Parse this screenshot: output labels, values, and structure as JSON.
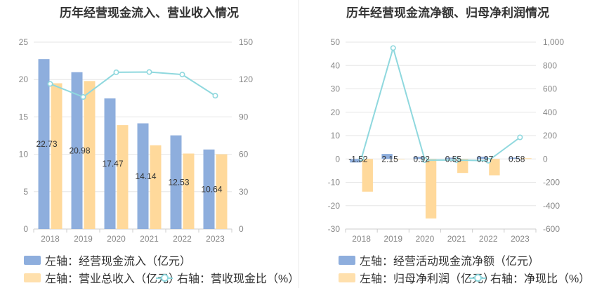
{
  "left": {
    "title": "历年经营现金流入、营业收入情况",
    "legend": {
      "bar1": "左轴：经营现金流入（亿元）",
      "bar2": "左轴：营业总收入（亿元）",
      "line": "右轴：营收现金比（%）"
    }
  },
  "right": {
    "title": "历年经营现金流净额、归母净利润情况",
    "legend": {
      "bar1": "左轴：经营活动现金流净额（亿元）",
      "bar2": "左轴：归母净利润（亿元）",
      "line": "右轴：净现比（%）"
    }
  },
  "colors": {
    "bar1": "#8eaedd",
    "bar2": "#ffd99b",
    "line": "#8fd8de",
    "grid": "#e6e6e6",
    "axis_text": "#888888"
  },
  "chart_data": [
    {
      "type": "bar",
      "title": "历年经营现金流入、营业收入情况",
      "categories": [
        "2018",
        "2019",
        "2020",
        "2021",
        "2022",
        "2023"
      ],
      "left_axis": {
        "ylim": [
          0,
          25
        ],
        "ticks": [
          "0",
          "5",
          "10",
          "15",
          "20",
          "25"
        ]
      },
      "right_axis": {
        "ylim": [
          0,
          150
        ],
        "ticks": [
          "0",
          "30",
          "60",
          "90",
          "120",
          "150"
        ]
      },
      "series": [
        {
          "name": "左轴：经营现金流入（亿元）",
          "axis": "left",
          "type": "bar",
          "values": [
            22.73,
            20.98,
            17.47,
            14.14,
            12.53,
            10.64
          ],
          "labels": [
            "22.73",
            "20.98",
            "17.47",
            "14.14",
            "12.53",
            "10.64"
          ]
        },
        {
          "name": "左轴：营业总收入（亿元）",
          "axis": "left",
          "type": "bar",
          "values": [
            19.5,
            19.8,
            13.9,
            11.2,
            10.1,
            10.0
          ]
        },
        {
          "name": "右轴：营收现金比（%）",
          "axis": "right",
          "type": "line",
          "values": [
            116.5,
            106.0,
            125.8,
            126.0,
            124.0,
            107.0
          ]
        }
      ]
    },
    {
      "type": "bar",
      "title": "历年经营现金流净额、归母净利润情况",
      "categories": [
        "2018",
        "2019",
        "2020",
        "2021",
        "2022",
        "2023"
      ],
      "left_axis": {
        "ylim": [
          -30,
          50
        ],
        "ticks": [
          "-30",
          "-20",
          "-10",
          "0",
          "10",
          "20",
          "30",
          "40",
          "50"
        ]
      },
      "right_axis": {
        "ylim": [
          -600,
          1000
        ],
        "ticks": [
          "-600",
          "-400",
          "-200",
          "0",
          "200",
          "400",
          "600",
          "800",
          "1,000"
        ]
      },
      "series": [
        {
          "name": "左轴：经营活动现金流净额（亿元）",
          "axis": "left",
          "type": "bar",
          "values": [
            -1.52,
            2.15,
            0.92,
            0.55,
            0.97,
            0.58
          ],
          "labels": [
            "-1.52",
            "2.15",
            "0.92",
            "0.55",
            "0.97",
            "0.58"
          ]
        },
        {
          "name": "左轴：归母净利润（亿元）",
          "axis": "left",
          "type": "bar",
          "values": [
            -14.0,
            0.0,
            -25.5,
            -6.0,
            -7.0,
            0.3
          ]
        },
        {
          "name": "右轴：净现比（%）",
          "axis": "right",
          "type": "line",
          "values": [
            5,
            950,
            -10,
            -10,
            -15,
            185
          ]
        }
      ]
    }
  ]
}
